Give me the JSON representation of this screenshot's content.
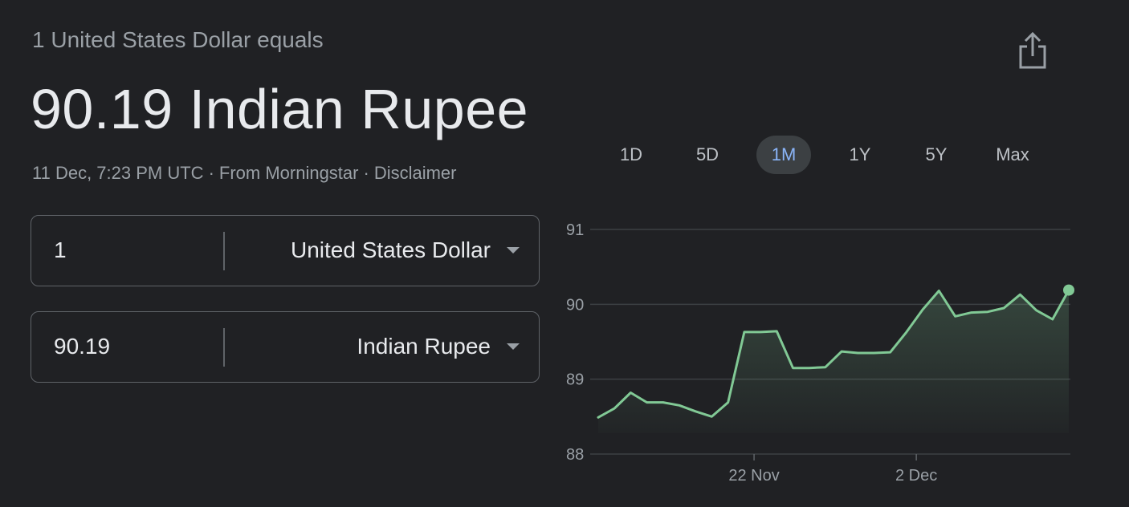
{
  "header": {
    "subtitle": "1 United States Dollar equals",
    "result": "90.19 Indian Rupee",
    "timestamp": "11 Dec, 7:23 PM UTC",
    "source": "From Morningstar",
    "disclaimer": "Disclaimer",
    "separator": "·"
  },
  "converter": {
    "from": {
      "amount": "1",
      "currency": "United States Dollar"
    },
    "to": {
      "amount": "90.19",
      "currency": "Indian Rupee"
    }
  },
  "range_tabs": {
    "items": [
      "1D",
      "5D",
      "1M",
      "1Y",
      "5Y",
      "Max"
    ],
    "active": "1M"
  },
  "icons": {
    "share": "share-icon",
    "dropdown": "chevron-down-icon"
  },
  "colors": {
    "background": "#202124",
    "line": "#81c995",
    "active_tab_text": "#8ab4f8",
    "active_tab_bg": "#3c4043"
  },
  "chart_data": {
    "type": "area",
    "title": "",
    "xlabel": "",
    "ylabel": "",
    "y_ticks": [
      "91",
      "90",
      "89",
      "88"
    ],
    "x_tick_labels": [
      "22 Nov",
      "2 Dec"
    ],
    "ylim": [
      88,
      91
    ],
    "grid": true,
    "series": [
      {
        "values": [
          88.49,
          88.61,
          88.82,
          88.69,
          88.69,
          88.65,
          88.57,
          88.5,
          88.69,
          89.63,
          89.63,
          89.64,
          89.15,
          89.15,
          89.16,
          89.37,
          89.35,
          89.35,
          89.36,
          89.63,
          89.93,
          90.18,
          89.84,
          89.89,
          89.9,
          89.95,
          90.13,
          89.92,
          89.8,
          90.19
        ]
      }
    ]
  }
}
